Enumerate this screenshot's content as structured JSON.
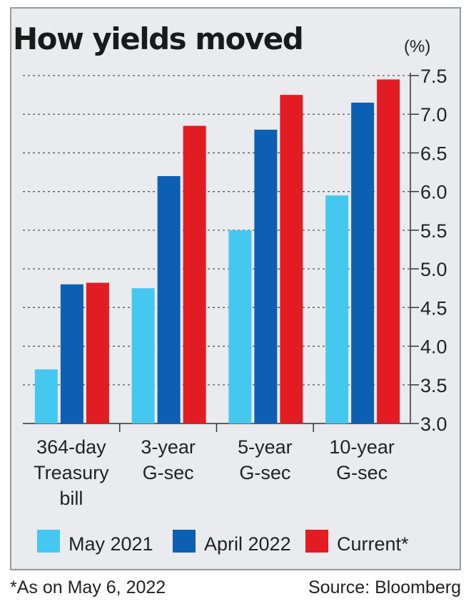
{
  "chart_data": {
    "type": "bar",
    "title": "How yields moved",
    "unit": "(%)",
    "categories": [
      [
        "364-day",
        "Treasury",
        "bill"
      ],
      [
        "3-year",
        "G-sec"
      ],
      [
        "5-year",
        "G-sec"
      ],
      [
        "10-year",
        "G-sec"
      ]
    ],
    "series": [
      {
        "name": "May 2021",
        "color": "#45c8f0",
        "values": [
          3.7,
          4.75,
          5.5,
          5.95
        ]
      },
      {
        "name": "April 2022",
        "color": "#0d5fb3",
        "values": [
          4.8,
          6.2,
          6.8,
          7.15
        ]
      },
      {
        "name": "Current*",
        "color": "#e31b23",
        "values": [
          4.82,
          6.85,
          7.25,
          7.45
        ]
      }
    ],
    "ylim": [
      3.0,
      7.5
    ],
    "yticks": [
      "3.0",
      "3.5",
      "4.0",
      "4.5",
      "5.0",
      "5.5",
      "6.0",
      "6.5",
      "7.0",
      "7.5"
    ],
    "y_axis_side": "right",
    "grid": "dashed horizontal",
    "legend": "bottom"
  },
  "footnote": "*As on May 6, 2022",
  "source": "Source: Bloomberg"
}
